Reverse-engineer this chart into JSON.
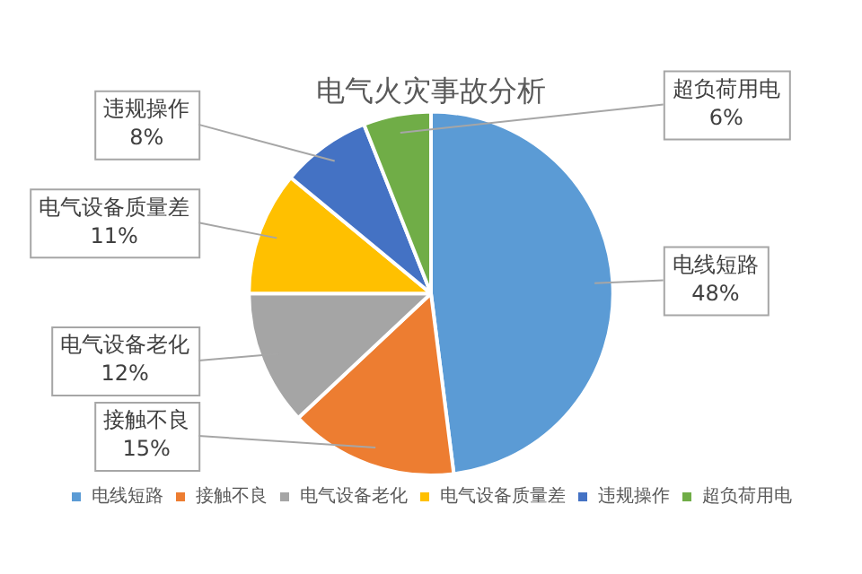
{
  "chart_data": {
    "type": "pie",
    "title": "电气火灾事故分析",
    "categories": [
      "电线短路",
      "接触不良",
      "电气设备老化",
      "电气设备质量差",
      "违规操作",
      "超负荷用电"
    ],
    "values": [
      48,
      15,
      12,
      11,
      8,
      6
    ],
    "value_labels": [
      "48%",
      "15%",
      "12%",
      "11%",
      "8%",
      "6%"
    ],
    "colors": [
      "#5b9bd5",
      "#ed7d31",
      "#a5a5a5",
      "#ffc000",
      "#4472c4",
      "#70ad47"
    ],
    "legend": "bottom"
  }
}
